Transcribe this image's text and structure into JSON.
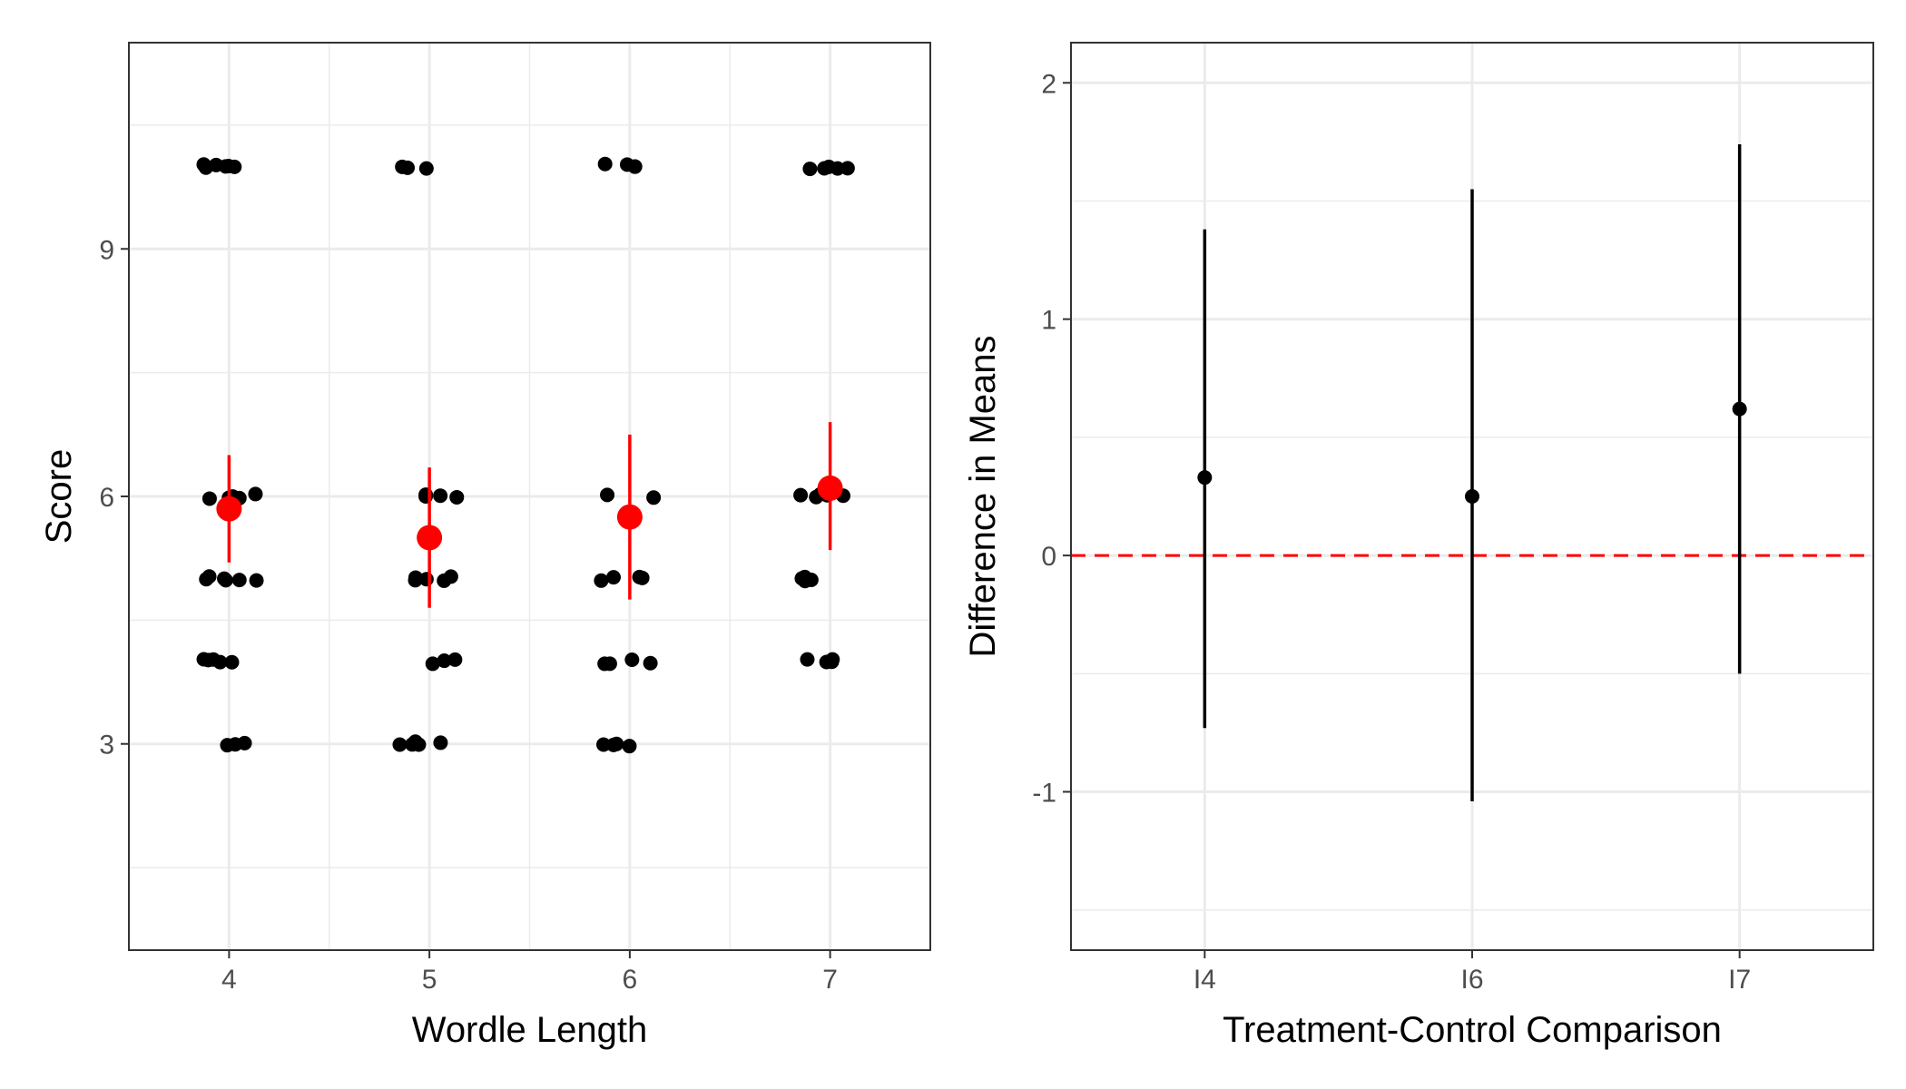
{
  "chart_data": [
    {
      "type": "scatter",
      "xlabel": "Wordle Length",
      "ylabel": "Score",
      "categories": [
        "4",
        "5",
        "6",
        "7"
      ],
      "ylim": [
        0.5,
        11.5
      ],
      "yticks": [
        3,
        6,
        9
      ],
      "grid": true,
      "series": [
        {
          "values": [
            {
              "x": "4",
              "y": [
                10,
                10,
                10,
                10,
                10,
                10,
                6,
                6,
                6,
                6,
                6,
                6,
                5,
                5,
                5,
                5,
                5,
                5,
                4,
                4,
                4,
                4,
                4,
                3,
                3,
                3
              ]
            },
            {
              "x": "5",
              "y": [
                10,
                10,
                10,
                6,
                6,
                6,
                6,
                5,
                5,
                5,
                5,
                5,
                4,
                4,
                4,
                3,
                3,
                3,
                3,
                3
              ]
            },
            {
              "x": "6",
              "y": [
                10,
                10,
                10,
                10,
                6,
                6,
                5,
                5,
                5,
                5,
                4,
                4,
                4,
                4,
                3,
                3,
                3,
                3
              ]
            },
            {
              "x": "7",
              "y": [
                10,
                10,
                10,
                10,
                10,
                6,
                6,
                6,
                6,
                6,
                5,
                5,
                5,
                5,
                4,
                4,
                4,
                4
              ]
            }
          ],
          "color": "#000000"
        },
        {
          "values": [
            {
              "x": "4",
              "mean": 5.85,
              "lower": 5.2,
              "upper": 6.5
            },
            {
              "x": "5",
              "mean": 5.5,
              "lower": 4.65,
              "upper": 6.35
            },
            {
              "x": "6",
              "mean": 5.75,
              "lower": 4.75,
              "upper": 6.75
            },
            {
              "x": "7",
              "mean": 6.1,
              "lower": 5.35,
              "upper": 6.9
            }
          ],
          "color": "#ff0000"
        }
      ]
    },
    {
      "type": "scatter",
      "xlabel": "Treatment-Control Comparison",
      "ylabel": "Difference in Means",
      "categories": [
        "I4",
        "I6",
        "I7"
      ],
      "ylim": [
        -1.67,
        2.17
      ],
      "yticks": [
        -1,
        0,
        1,
        2
      ],
      "ytick_labels": [
        "-1",
        "0",
        "1",
        "2"
      ],
      "grid": true,
      "reference_line": {
        "y": 0,
        "color": "#ff0000",
        "style": "dashed"
      },
      "series": [
        {
          "values": [
            {
              "x": "I4",
              "estimate": 0.33,
              "lower": -0.73,
              "upper": 1.38
            },
            {
              "x": "I6",
              "estimate": 0.25,
              "lower": -1.04,
              "upper": 1.55
            },
            {
              "x": "I7",
              "estimate": 0.62,
              "lower": -0.5,
              "upper": 1.74
            }
          ],
          "color": "#000000"
        }
      ]
    }
  ]
}
